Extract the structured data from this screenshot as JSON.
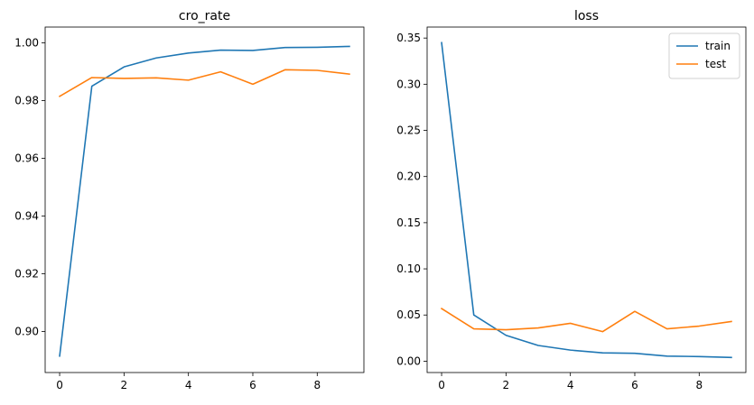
{
  "colors": {
    "train": "#1f77b4",
    "test": "#ff7f0e"
  },
  "chart_data": [
    {
      "type": "line",
      "title": "cro_rate",
      "xlabel": "",
      "ylabel": "",
      "x": [
        0,
        1,
        2,
        3,
        4,
        5,
        6,
        7,
        8,
        9
      ],
      "xlim": [
        -0.45,
        9.45
      ],
      "ylim": [
        0.8858,
        1.0055
      ],
      "xticks": [
        "0",
        "2",
        "4",
        "6",
        "8"
      ],
      "yticks": [
        "0.90",
        "0.92",
        "0.94",
        "0.96",
        "0.98",
        "1.00"
      ],
      "grid": false,
      "legend": "none",
      "series": [
        {
          "key": "train",
          "values": [
            0.8915,
            0.985,
            0.9917,
            0.9948,
            0.9965,
            0.9975,
            0.9974,
            0.9984,
            0.9985,
            0.9988
          ]
        },
        {
          "key": "test",
          "values": [
            0.9815,
            0.988,
            0.9877,
            0.9879,
            0.9871,
            0.99,
            0.9857,
            0.9907,
            0.9905,
            0.9892
          ]
        }
      ]
    },
    {
      "type": "line",
      "title": "loss",
      "xlabel": "",
      "ylabel": "",
      "x": [
        0,
        1,
        2,
        3,
        4,
        5,
        6,
        7,
        8,
        9
      ],
      "xlim": [
        -0.45,
        9.45
      ],
      "ylim": [
        -0.0123,
        0.3619
      ],
      "xticks": [
        "0",
        "2",
        "4",
        "6",
        "8"
      ],
      "yticks": [
        "0.00",
        "0.05",
        "0.10",
        "0.15",
        "0.20",
        "0.25",
        "0.30",
        "0.35"
      ],
      "grid": false,
      "legend": "top-right",
      "series": [
        {
          "key": "train",
          "name": "train",
          "values": [
            0.345,
            0.05,
            0.028,
            0.017,
            0.012,
            0.009,
            0.0085,
            0.0055,
            0.005,
            0.004
          ]
        },
        {
          "key": "test",
          "name": "test",
          "values": [
            0.057,
            0.035,
            0.034,
            0.036,
            0.041,
            0.032,
            0.054,
            0.035,
            0.038,
            0.043
          ]
        }
      ]
    }
  ]
}
